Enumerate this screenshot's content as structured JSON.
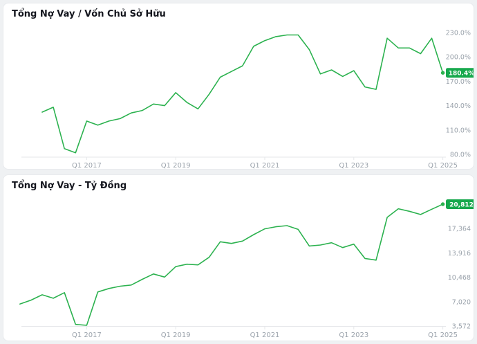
{
  "theme": {
    "line_color": "#2cb24f",
    "badge_color": "#16a84c",
    "badge_text_color": "#ffffff",
    "axis_label_color": "#9aa2ab",
    "axis_line_color": "#e5e7ea",
    "title_color": "#13151d",
    "card_bg": "#ffffff",
    "page_bg": "#eff1f3"
  },
  "chart_data": [
    {
      "type": "line",
      "title": "Tổng Nợ Vay / Vốn Chủ Sở Hữu",
      "unit": "%",
      "grid": false,
      "legend": "none",
      "ylim": [
        80,
        230
      ],
      "x": [
        "Q1 2016",
        "Q2 2016",
        "Q3 2016",
        "Q4 2016",
        "Q1 2017",
        "Q2 2017",
        "Q3 2017",
        "Q4 2017",
        "Q1 2018",
        "Q2 2018",
        "Q3 2018",
        "Q4 2018",
        "Q1 2019",
        "Q2 2019",
        "Q3 2019",
        "Q4 2019",
        "Q1 2020",
        "Q2 2020",
        "Q3 2020",
        "Q4 2020",
        "Q1 2021",
        "Q2 2021",
        "Q3 2021",
        "Q4 2021",
        "Q1 2022",
        "Q2 2022",
        "Q3 2022",
        "Q4 2022",
        "Q1 2023",
        "Q2 2023",
        "Q3 2023",
        "Q4 2023",
        "Q1 2024",
        "Q2 2024",
        "Q3 2024",
        "Q4 2024",
        "Q1 2025"
      ],
      "values": [
        132,
        138,
        87,
        82,
        121,
        116,
        121,
        124,
        131,
        134,
        142,
        140,
        156,
        144,
        136,
        154,
        175,
        182,
        189,
        213,
        220,
        225,
        227,
        227,
        209,
        179,
        184,
        176,
        183,
        163,
        160,
        223,
        211,
        211,
        204,
        223,
        180.4
      ],
      "latest_value": 180.4,
      "latest_label": "180.4%",
      "y_ticks": [
        {
          "value": 230,
          "label": "230.0%"
        },
        {
          "value": 200,
          "label": "200.0%"
        },
        {
          "value": 170,
          "label": "170.0%"
        },
        {
          "value": 140,
          "label": "140.0%"
        },
        {
          "value": 110,
          "label": "110.0%"
        },
        {
          "value": 80,
          "label": "80.0%"
        }
      ],
      "x_ticks": [
        "Q1 2017",
        "Q1 2019",
        "Q1 2021",
        "Q1 2023",
        "Q1 2025"
      ]
    },
    {
      "type": "line",
      "title": "Tổng Nợ Vay - Tỷ Đồng",
      "unit": "tỷ đồng",
      "grid": false,
      "legend": "none",
      "ylim": [
        3572,
        20812
      ],
      "x": [
        "Q3 2015",
        "Q4 2015",
        "Q1 2016",
        "Q2 2016",
        "Q3 2016",
        "Q4 2016",
        "Q1 2017",
        "Q2 2017",
        "Q3 2017",
        "Q4 2017",
        "Q1 2018",
        "Q2 2018",
        "Q3 2018",
        "Q4 2018",
        "Q1 2019",
        "Q2 2019",
        "Q3 2019",
        "Q4 2019",
        "Q1 2020",
        "Q2 2020",
        "Q3 2020",
        "Q4 2020",
        "Q1 2021",
        "Q2 2021",
        "Q3 2021",
        "Q4 2021",
        "Q1 2022",
        "Q2 2022",
        "Q3 2022",
        "Q4 2022",
        "Q1 2023",
        "Q2 2023",
        "Q3 2023",
        "Q4 2023",
        "Q1 2024",
        "Q2 2024",
        "Q3 2024",
        "Q4 2024",
        "Q1 2025"
      ],
      "values": [
        6680,
        7240,
        7990,
        7500,
        8290,
        3800,
        3670,
        8390,
        8880,
        9200,
        9370,
        10180,
        10940,
        10500,
        11980,
        12320,
        12220,
        13300,
        15490,
        15260,
        15590,
        16500,
        17320,
        17620,
        17780,
        17250,
        14900,
        15030,
        15360,
        14670,
        15160,
        13130,
        12900,
        18950,
        20170,
        19800,
        19350,
        20100,
        20812
      ],
      "latest_value": 20812,
      "latest_label": "20,812",
      "y_ticks": [
        {
          "value": 17364,
          "label": "17,364"
        },
        {
          "value": 13916,
          "label": "13,916"
        },
        {
          "value": 10468,
          "label": "10,468"
        },
        {
          "value": 7020,
          "label": "7,020"
        },
        {
          "value": 3572,
          "label": "3,572"
        }
      ],
      "x_ticks": [
        "Q1 2017",
        "Q1 2019",
        "Q1 2021",
        "Q1 2023",
        "Q1 2025"
      ]
    }
  ]
}
